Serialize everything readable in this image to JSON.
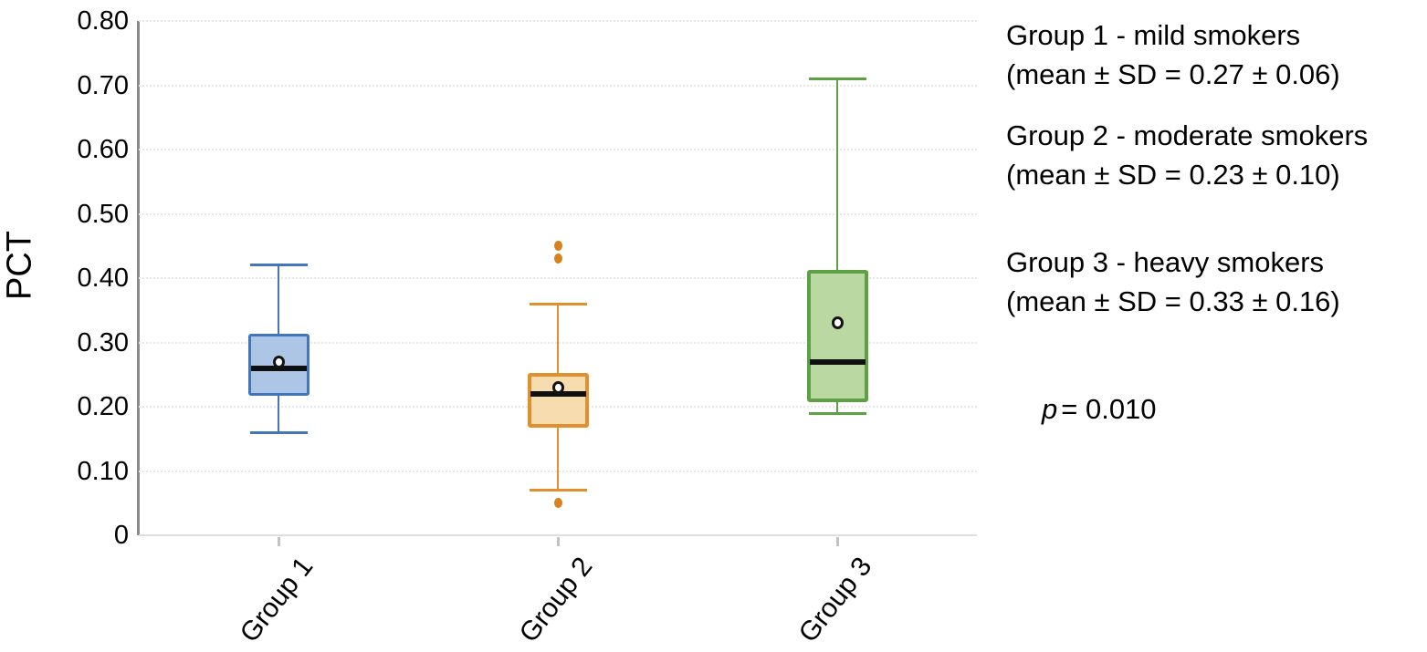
{
  "chart_data": {
    "type": "box",
    "title": "",
    "xlabel": "",
    "ylabel": "PCT",
    "ylim": [
      0,
      0.8
    ],
    "grid": true,
    "legend_position": "right",
    "yticks": [
      {
        "v": 0.8,
        "label": "0.80"
      },
      {
        "v": 0.7,
        "label": "0.70"
      },
      {
        "v": 0.6,
        "label": "0.60"
      },
      {
        "v": 0.5,
        "label": "0.50"
      },
      {
        "v": 0.4,
        "label": "0.40"
      },
      {
        "v": 0.3,
        "label": "0.30"
      },
      {
        "v": 0.2,
        "label": "0.20"
      },
      {
        "v": 0.1,
        "label": "0.10"
      },
      {
        "v": 0,
        "label": "0"
      }
    ],
    "categories": [
      "Group 1",
      "Group 2",
      "Group 3"
    ],
    "groups": [
      {
        "label": "Group 1",
        "whisker_low": 0.16,
        "q1": 0.22,
        "median": 0.26,
        "q3": 0.31,
        "whisker_high": 0.42,
        "mean": 0.27,
        "outliers": [],
        "fill": "#adc6e6",
        "stroke": "#4376b8"
      },
      {
        "label": "Group 2",
        "whisker_low": 0.07,
        "q1": 0.17,
        "median": 0.22,
        "q3": 0.25,
        "whisker_high": 0.36,
        "mean": 0.23,
        "outliers": [
          0.45,
          0.43,
          0.05
        ],
        "fill": "#f6dcae",
        "stroke": "#e28f2d",
        "outlier_color": "#d8811f"
      },
      {
        "label": "Group 3",
        "whisker_low": 0.19,
        "q1": 0.21,
        "median": 0.27,
        "q3": 0.41,
        "whisker_high": 0.71,
        "mean": 0.33,
        "outliers": [],
        "fill": "#b9d8a2",
        "stroke": "#5ea144"
      }
    ],
    "legend": [
      {
        "title": "Group 1 - mild smokers",
        "stats": "(mean ± SD = 0.27 ± 0.06)"
      },
      {
        "title": "Group 2 - moderate smokers",
        "stats": "(mean ± SD = 0.23 ± 0.10)"
      },
      {
        "title": "Group 3 - heavy smokers",
        "stats": "(mean ± SD = 0.33 ± 0.16)"
      }
    ],
    "p_value": {
      "label": "p",
      "text": "= 0.010"
    }
  }
}
